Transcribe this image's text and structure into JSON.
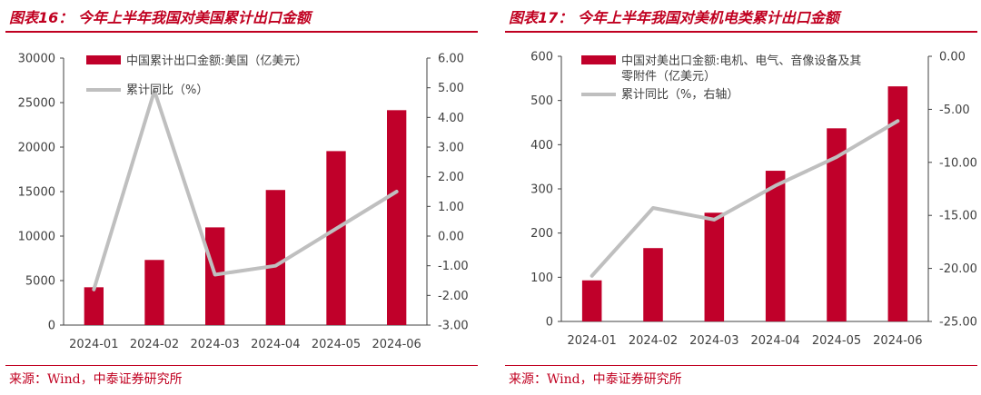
{
  "source_text": "来源：Wind，中泰证券研究所",
  "chart_data": [
    {
      "type": "bar",
      "title": "图表16：  今年上半年我国对美国累计出口金额",
      "categories": [
        "2024-01",
        "2024-02",
        "2024-03",
        "2024-04",
        "2024-05",
        "2024-06"
      ],
      "series": [
        {
          "name": "中国累计出口金额:美国（亿美元）",
          "type": "bar",
          "axis": "left",
          "values": [
            4250,
            7320,
            10980,
            15180,
            19550,
            24150
          ]
        },
        {
          "name": "累计同比（%）",
          "type": "line",
          "axis": "right",
          "values": [
            -1.8,
            4.9,
            -1.3,
            -1.0,
            0.25,
            1.5
          ]
        }
      ],
      "ylim_left": [
        0,
        30000
      ],
      "yticks_left": [
        "0",
        "5000",
        "10000",
        "15000",
        "20000",
        "25000",
        "30000"
      ],
      "ylim_right": [
        -3,
        6
      ],
      "yticks_right": [
        "-3.00",
        "-2.00",
        "-1.00",
        "0.00",
        "1.00",
        "2.00",
        "3.00",
        "4.00",
        "5.00",
        "6.00"
      ],
      "legend_lines": [
        [
          "中国累计出口金额:美国（亿美元）"
        ],
        [
          "累计同比（%）"
        ]
      ],
      "legend_position": "top-left",
      "grid": false,
      "colors": {
        "bar": "#c0002a",
        "line": "#bfbfbf"
      }
    },
    {
      "type": "bar",
      "title": "图表17：  今年上半年我国对美机电类累计出口金额",
      "categories": [
        "2024-01",
        "2024-02",
        "2024-03",
        "2024-04",
        "2024-05",
        "2024-06"
      ],
      "series": [
        {
          "name": "中国对美出口金额:电机、电气、音像设备及其零附件（亿美元）",
          "type": "bar",
          "axis": "left",
          "values": [
            93,
            166,
            246,
            341,
            437,
            532
          ]
        },
        {
          "name": "累计同比（%，右轴）",
          "type": "line",
          "axis": "right",
          "values": [
            -20.7,
            -14.3,
            -15.4,
            -12.2,
            -9.5,
            -6.1
          ]
        }
      ],
      "ylim_left": [
        0,
        600
      ],
      "yticks_left": [
        "0",
        "100",
        "200",
        "300",
        "400",
        "500",
        "600"
      ],
      "ylim_right": [
        -25,
        0
      ],
      "yticks_right": [
        "-25.00",
        "-20.00",
        "-15.00",
        "-10.00",
        "-5.00",
        "0.00"
      ],
      "legend_lines": [
        [
          "中国对美出口金额:电机、电气、音像设备及其",
          "零附件（亿美元）"
        ],
        [
          "累计同比（%，右轴）"
        ]
      ],
      "legend_position": "top-left",
      "grid": false,
      "colors": {
        "bar": "#c0002a",
        "line": "#bfbfbf"
      }
    }
  ]
}
